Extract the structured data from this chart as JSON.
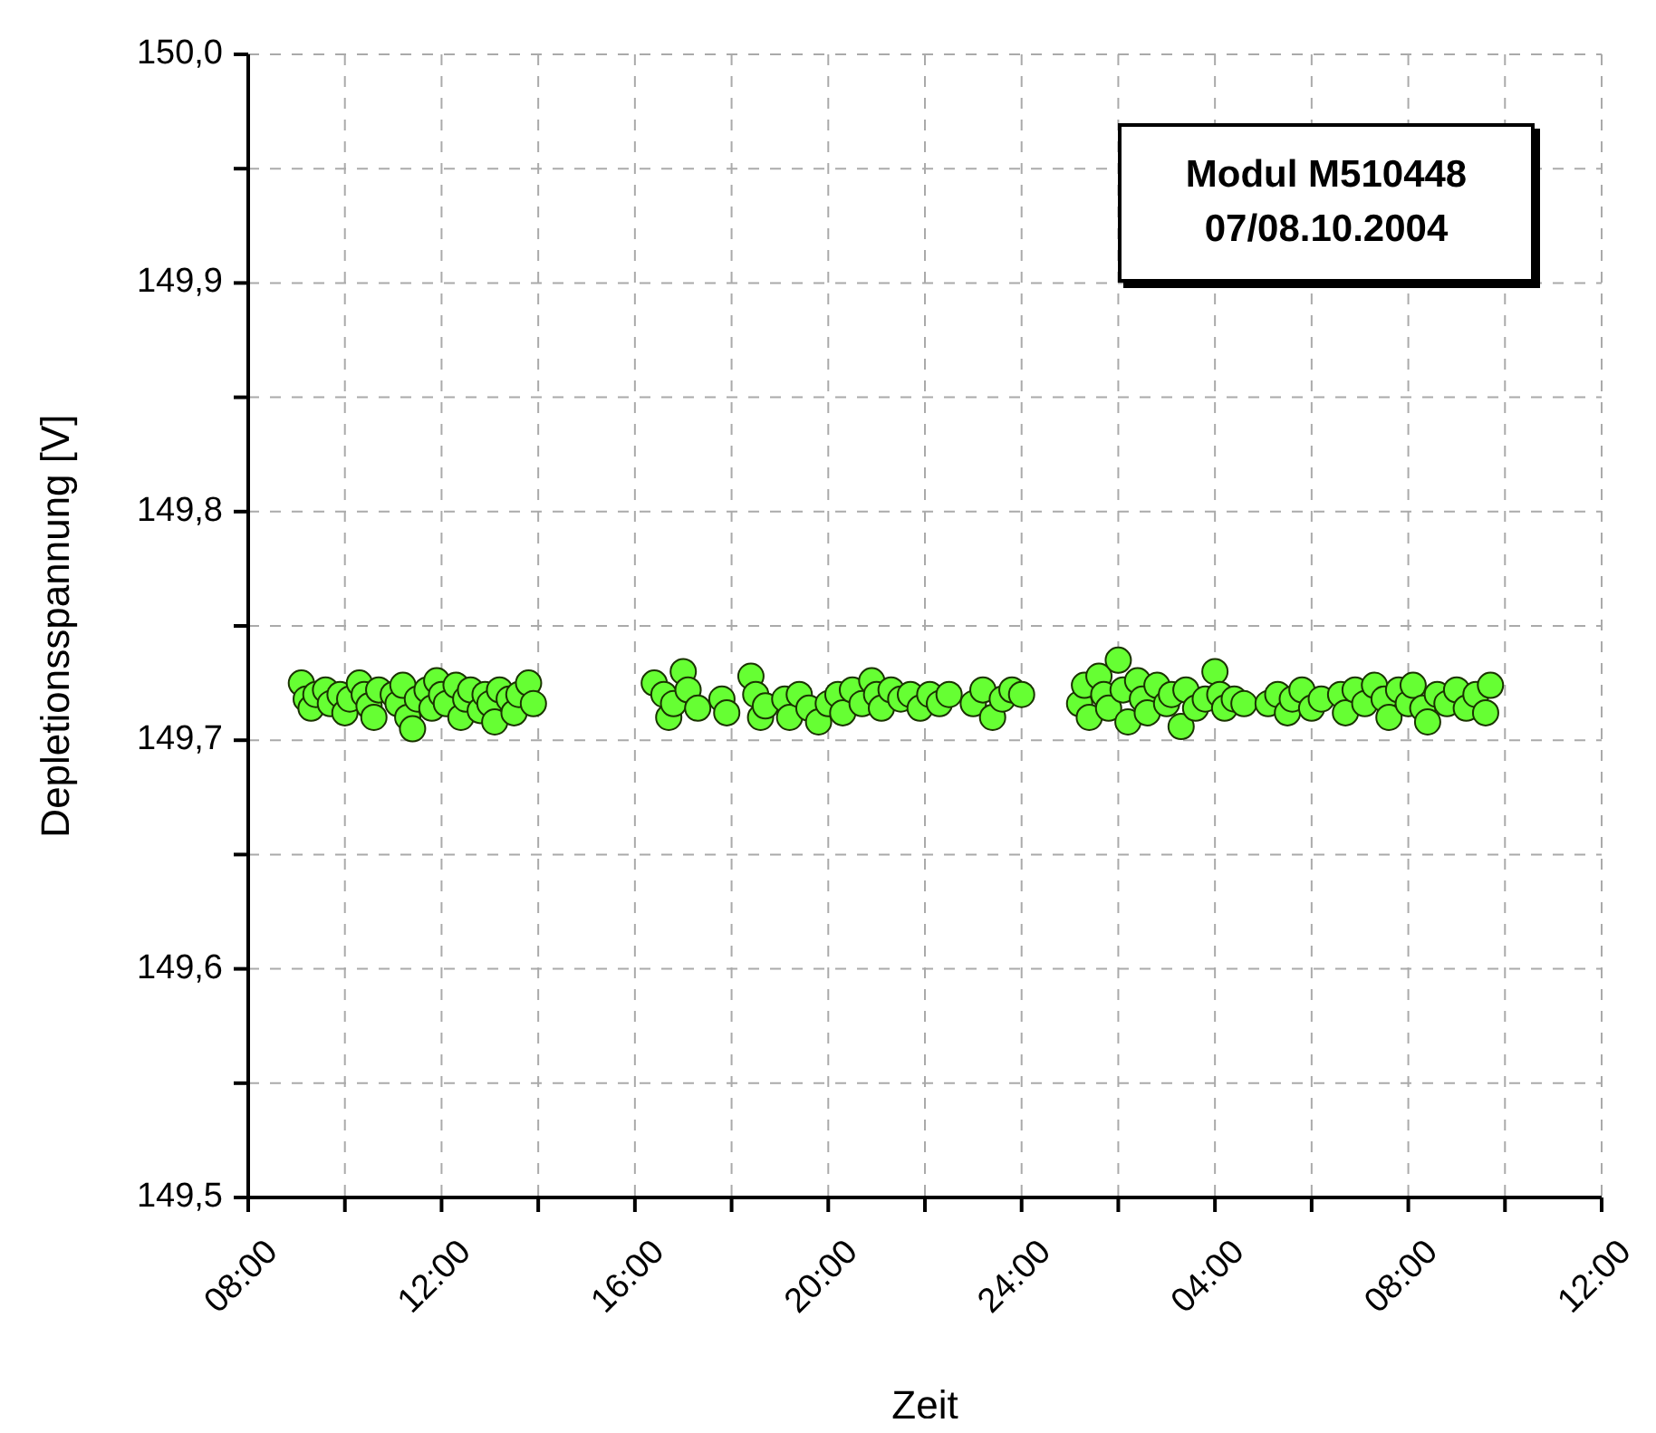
{
  "chart_data": {
    "type": "scatter",
    "xlabel": "Zeit",
    "ylabel": "Depletionsspannung [V]",
    "annotations": [
      "Modul M510448",
      "07/08.10.2004"
    ],
    "xlim": [
      "2004-10-07T08:00",
      "2004-10-08T12:00"
    ],
    "xticks": [
      {
        "value": "2004-10-07T08:00",
        "label": "08:00"
      },
      {
        "value": "2004-10-07T10:00",
        "label": null
      },
      {
        "value": "2004-10-07T12:00",
        "label": "12:00"
      },
      {
        "value": "2004-10-07T14:00",
        "label": null
      },
      {
        "value": "2004-10-07T16:00",
        "label": "16:00"
      },
      {
        "value": "2004-10-07T18:00",
        "label": null
      },
      {
        "value": "2004-10-07T20:00",
        "label": "20:00"
      },
      {
        "value": "2004-10-07T22:00",
        "label": null
      },
      {
        "value": "2004-10-08T00:00",
        "label": "24:00"
      },
      {
        "value": "2004-10-08T02:00",
        "label": null
      },
      {
        "value": "2004-10-08T04:00",
        "label": "04:00"
      },
      {
        "value": "2004-10-08T06:00",
        "label": null
      },
      {
        "value": "2004-10-08T08:00",
        "label": "08:00"
      },
      {
        "value": "2004-10-08T10:00",
        "label": null
      },
      {
        "value": "2004-10-08T12:00",
        "label": "12:00"
      }
    ],
    "ylim": [
      149.5,
      150.0
    ],
    "yticks": [
      {
        "value": 149.5,
        "label": "149,5"
      },
      {
        "value": 149.55,
        "label": null
      },
      {
        "value": 149.6,
        "label": "149,6"
      },
      {
        "value": 149.65,
        "label": null
      },
      {
        "value": 149.7,
        "label": "149,7"
      },
      {
        "value": 149.75,
        "label": null
      },
      {
        "value": 149.8,
        "label": "149,8"
      },
      {
        "value": 149.85,
        "label": null
      },
      {
        "value": 149.9,
        "label": "149,9"
      },
      {
        "value": 149.95,
        "label": null
      },
      {
        "value": 150.0,
        "label": "150,0"
      }
    ],
    "grid": true,
    "marker": "circle",
    "series": [
      {
        "color": "#66ff33",
        "x": [
          "2004-10-07T09:06",
          "2004-10-07T09:12",
          "2004-10-07T09:18",
          "2004-10-07T09:24",
          "2004-10-07T09:36",
          "2004-10-07T09:42",
          "2004-10-07T09:54",
          "2004-10-07T10:00",
          "2004-10-07T10:06",
          "2004-10-07T10:18",
          "2004-10-07T10:24",
          "2004-10-07T10:30",
          "2004-10-07T10:36",
          "2004-10-07T10:42",
          "2004-10-07T11:00",
          "2004-10-07T11:06",
          "2004-10-07T11:12",
          "2004-10-07T11:18",
          "2004-10-07T11:24",
          "2004-10-07T11:30",
          "2004-10-07T11:42",
          "2004-10-07T11:48",
          "2004-10-07T11:54",
          "2004-10-07T12:00",
          "2004-10-07T12:06",
          "2004-10-07T12:18",
          "2004-10-07T12:24",
          "2004-10-07T12:30",
          "2004-10-07T12:36",
          "2004-10-07T12:48",
          "2004-10-07T12:54",
          "2004-10-07T13:00",
          "2004-10-07T13:06",
          "2004-10-07T13:12",
          "2004-10-07T13:24",
          "2004-10-07T13:30",
          "2004-10-07T13:36",
          "2004-10-07T13:48",
          "2004-10-07T13:54",
          "2004-10-07T16:24",
          "2004-10-07T16:36",
          "2004-10-07T16:42",
          "2004-10-07T16:48",
          "2004-10-07T17:00",
          "2004-10-07T17:06",
          "2004-10-07T17:18",
          "2004-10-07T17:48",
          "2004-10-07T17:54",
          "2004-10-07T18:24",
          "2004-10-07T18:30",
          "2004-10-07T18:36",
          "2004-10-07T18:42",
          "2004-10-07T19:06",
          "2004-10-07T19:12",
          "2004-10-07T19:24",
          "2004-10-07T19:36",
          "2004-10-07T19:48",
          "2004-10-07T20:00",
          "2004-10-07T20:12",
          "2004-10-07T20:18",
          "2004-10-07T20:30",
          "2004-10-07T20:42",
          "2004-10-07T20:54",
          "2004-10-07T21:00",
          "2004-10-07T21:06",
          "2004-10-07T21:18",
          "2004-10-07T21:30",
          "2004-10-07T21:42",
          "2004-10-07T21:54",
          "2004-10-07T22:06",
          "2004-10-07T22:18",
          "2004-10-07T22:30",
          "2004-10-07T23:00",
          "2004-10-07T23:12",
          "2004-10-07T23:24",
          "2004-10-07T23:36",
          "2004-10-07T23:48",
          "2004-10-08T00:00",
          "2004-10-08T01:12",
          "2004-10-08T01:18",
          "2004-10-08T01:24",
          "2004-10-08T01:36",
          "2004-10-08T01:42",
          "2004-10-08T01:48",
          "2004-10-08T02:00",
          "2004-10-08T02:06",
          "2004-10-08T02:12",
          "2004-10-08T02:24",
          "2004-10-08T02:30",
          "2004-10-08T02:36",
          "2004-10-08T02:48",
          "2004-10-08T03:00",
          "2004-10-08T03:06",
          "2004-10-08T03:18",
          "2004-10-08T03:24",
          "2004-10-08T03:36",
          "2004-10-08T03:48",
          "2004-10-08T04:00",
          "2004-10-08T04:06",
          "2004-10-08T04:12",
          "2004-10-08T04:24",
          "2004-10-08T04:36",
          "2004-10-08T05:06",
          "2004-10-08T05:18",
          "2004-10-08T05:30",
          "2004-10-08T05:36",
          "2004-10-08T05:48",
          "2004-10-08T06:00",
          "2004-10-08T06:12",
          "2004-10-08T06:36",
          "2004-10-08T06:42",
          "2004-10-08T06:54",
          "2004-10-08T07:06",
          "2004-10-08T07:18",
          "2004-10-08T07:30",
          "2004-10-08T07:36",
          "2004-10-08T07:48",
          "2004-10-08T08:00",
          "2004-10-08T08:06",
          "2004-10-08T08:18",
          "2004-10-08T08:24",
          "2004-10-08T08:36",
          "2004-10-08T08:48",
          "2004-10-08T09:00",
          "2004-10-08T09:12",
          "2004-10-08T09:24",
          "2004-10-08T09:36",
          "2004-10-08T09:42"
        ],
        "values": [
          149.725,
          149.718,
          149.714,
          149.72,
          149.722,
          149.716,
          149.72,
          149.712,
          149.718,
          149.725,
          149.72,
          149.715,
          149.71,
          149.722,
          149.72,
          149.716,
          149.724,
          149.71,
          149.705,
          149.718,
          149.722,
          149.714,
          149.726,
          149.72,
          149.716,
          149.724,
          149.71,
          149.718,
          149.722,
          149.713,
          149.72,
          149.716,
          149.708,
          149.722,
          149.718,
          149.712,
          149.72,
          149.725,
          149.716,
          149.725,
          149.72,
          149.71,
          149.716,
          149.73,
          149.722,
          149.714,
          149.718,
          149.712,
          149.728,
          149.72,
          149.71,
          149.715,
          149.718,
          149.71,
          149.72,
          149.714,
          149.708,
          149.716,
          149.72,
          149.712,
          149.722,
          149.716,
          149.726,
          149.72,
          149.714,
          149.722,
          149.718,
          149.72,
          149.714,
          149.72,
          149.716,
          149.72,
          149.716,
          149.722,
          149.71,
          149.718,
          149.722,
          149.72,
          149.716,
          149.724,
          149.71,
          149.728,
          149.72,
          149.714,
          149.735,
          149.722,
          149.708,
          149.726,
          149.718,
          149.712,
          149.724,
          149.716,
          149.72,
          149.706,
          149.722,
          149.714,
          149.718,
          149.73,
          149.72,
          149.714,
          149.718,
          149.716,
          149.716,
          149.72,
          149.712,
          149.718,
          149.722,
          149.714,
          149.718,
          149.72,
          149.712,
          149.722,
          149.716,
          149.724,
          149.718,
          149.71,
          149.722,
          149.716,
          149.724,
          149.714,
          149.708,
          149.72,
          149.716,
          149.722,
          149.714,
          149.72,
          149.712,
          149.724
        ]
      }
    ]
  }
}
